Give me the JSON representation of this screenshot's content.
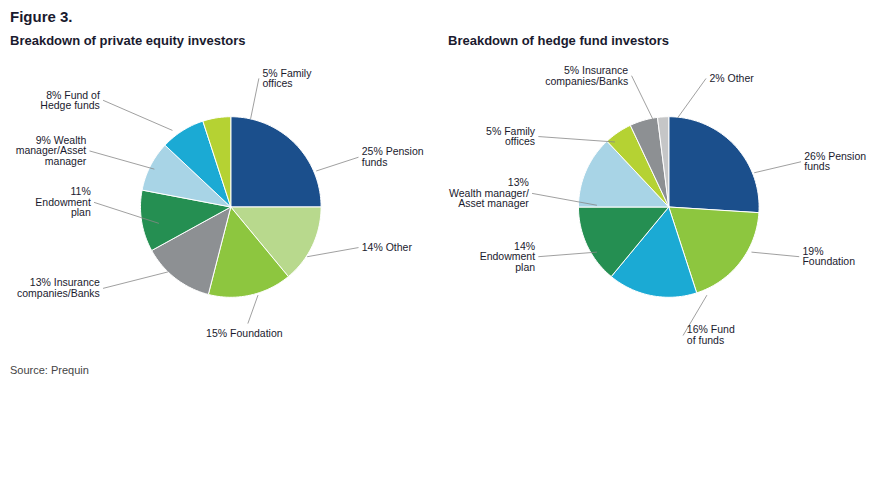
{
  "title": "Figure 3.",
  "source": "Source: Prequin",
  "chart_data": [
    {
      "type": "pie",
      "title": "Breakdown of private equity investors",
      "categories": [
        "25% Pension\nfunds",
        "14% Other",
        "15% Foundation",
        "13% Insurance\ncompanies/Banks",
        "11%\nEndowment\nplan",
        "9% Wealth\nmanager/Asset\nmanager",
        "8% Fund of\nHedge funds",
        "5% Family\noffices"
      ],
      "values": [
        25,
        14,
        15,
        13,
        11,
        9,
        8,
        5
      ],
      "colors": [
        "#1b4f8c",
        "#b8d98d",
        "#8dc63f",
        "#8d9093",
        "#258f52",
        "#a8d4e6",
        "#1baad4",
        "#b5d233"
      ]
    },
    {
      "type": "pie",
      "title": "Breakdown of hedge fund investors",
      "categories": [
        "26% Pension\nfunds",
        "19%\nFoundation",
        "16% Fund\nof funds",
        "14%\nEndowment\nplan",
        "13%\nWealth manager/\nAsset manager",
        "5% Family\noffices",
        "5% Insurance\ncompanies/Banks",
        "2% Other"
      ],
      "values": [
        26,
        19,
        16,
        14,
        13,
        5,
        5,
        2
      ],
      "colors": [
        "#1b4f8c",
        "#8dc63f",
        "#1baad4",
        "#258f52",
        "#a8d4e6",
        "#b5d233",
        "#8d9093",
        "#c5c6c7"
      ]
    }
  ]
}
